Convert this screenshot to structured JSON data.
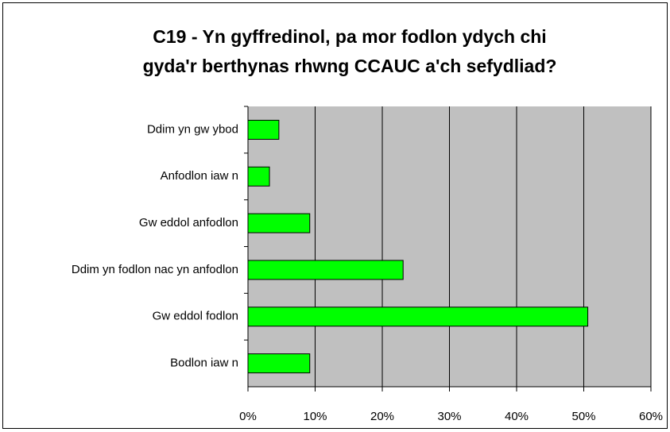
{
  "chart_data": {
    "type": "barh",
    "title": [
      "C19 - Yn gyffredinol, pa mor fodlon ydych chi",
      "gyda'r berthynas rhwng CCAUC a'ch sefydliad?"
    ],
    "categories": [
      "Ddim yn gw ybod",
      "Anfodlon iaw n",
      "Gw eddol anfodlon",
      "Ddim yn fodlon nac yn anfodlon",
      "Gw eddol fodlon",
      "Bodlon iaw n"
    ],
    "values": [
      4.6,
      3.2,
      9.2,
      23.1,
      50.6,
      9.2
    ],
    "color": "#00ff00",
    "xlim": [
      0,
      60
    ],
    "xticks": [
      {
        "value": 0,
        "label": "0%"
      },
      {
        "value": 10,
        "label": "10%"
      },
      {
        "value": 20,
        "label": "20%"
      },
      {
        "value": 30,
        "label": "30%"
      },
      {
        "value": 40,
        "label": "40%"
      },
      {
        "value": 50,
        "label": "50%"
      },
      {
        "value": 60,
        "label": "60%"
      }
    ],
    "grid": true
  }
}
